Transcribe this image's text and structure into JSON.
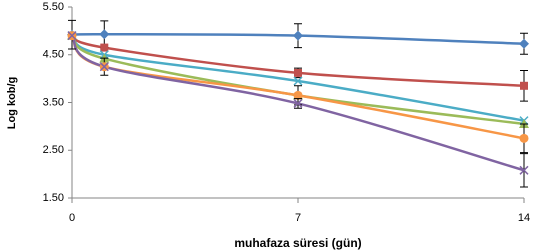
{
  "chart_data": {
    "type": "line",
    "y_label": "Log kob/g",
    "x_label": "muhafaza süresi (gün)",
    "x": [
      0,
      1,
      7,
      14
    ],
    "xlim": [
      0,
      14
    ],
    "xticks": [
      0,
      7,
      14
    ],
    "ylim": [
      1.5,
      5.5
    ],
    "yticks": [
      {
        "value": 1.5,
        "label": "1.50"
      },
      {
        "value": 2.5,
        "label": "2.50"
      },
      {
        "value": 3.5,
        "label": "3.50"
      },
      {
        "value": 4.5,
        "label": "4.50"
      },
      {
        "value": 5.5,
        "label": "5.50"
      }
    ],
    "grid": false,
    "series": [
      {
        "color": "#4f81bd",
        "marker": "diamond",
        "values": [
          4.92,
          4.93,
          4.9,
          4.73
        ],
        "errors": [
          0.3,
          0.28,
          0.25,
          0.22
        ]
      },
      {
        "color": "#c0504d",
        "marker": "square",
        "values": [
          4.9,
          4.65,
          4.12,
          3.85
        ],
        "errors": [
          null,
          null,
          0.1,
          0.32
        ]
      },
      {
        "color": "#4bacc6",
        "marker": "x",
        "values": [
          4.9,
          4.5,
          3.95,
          3.12
        ],
        "errors": [
          null,
          null,
          null,
          null
        ]
      },
      {
        "color": "#9bbb59",
        "marker": "triangle",
        "values": [
          4.9,
          4.42,
          3.65,
          3.05
        ],
        "errors": [
          null,
          null,
          null,
          null
        ]
      },
      {
        "color": "#f79646",
        "marker": "circle",
        "values": [
          4.9,
          4.25,
          3.65,
          2.75
        ],
        "errors": [
          null,
          0.18,
          0.2,
          0.3
        ]
      },
      {
        "color": "#8064a2",
        "marker": "x",
        "values": [
          4.9,
          4.25,
          3.48,
          2.08
        ],
        "errors": [
          null,
          null,
          0.1,
          0.35
        ]
      }
    ]
  }
}
